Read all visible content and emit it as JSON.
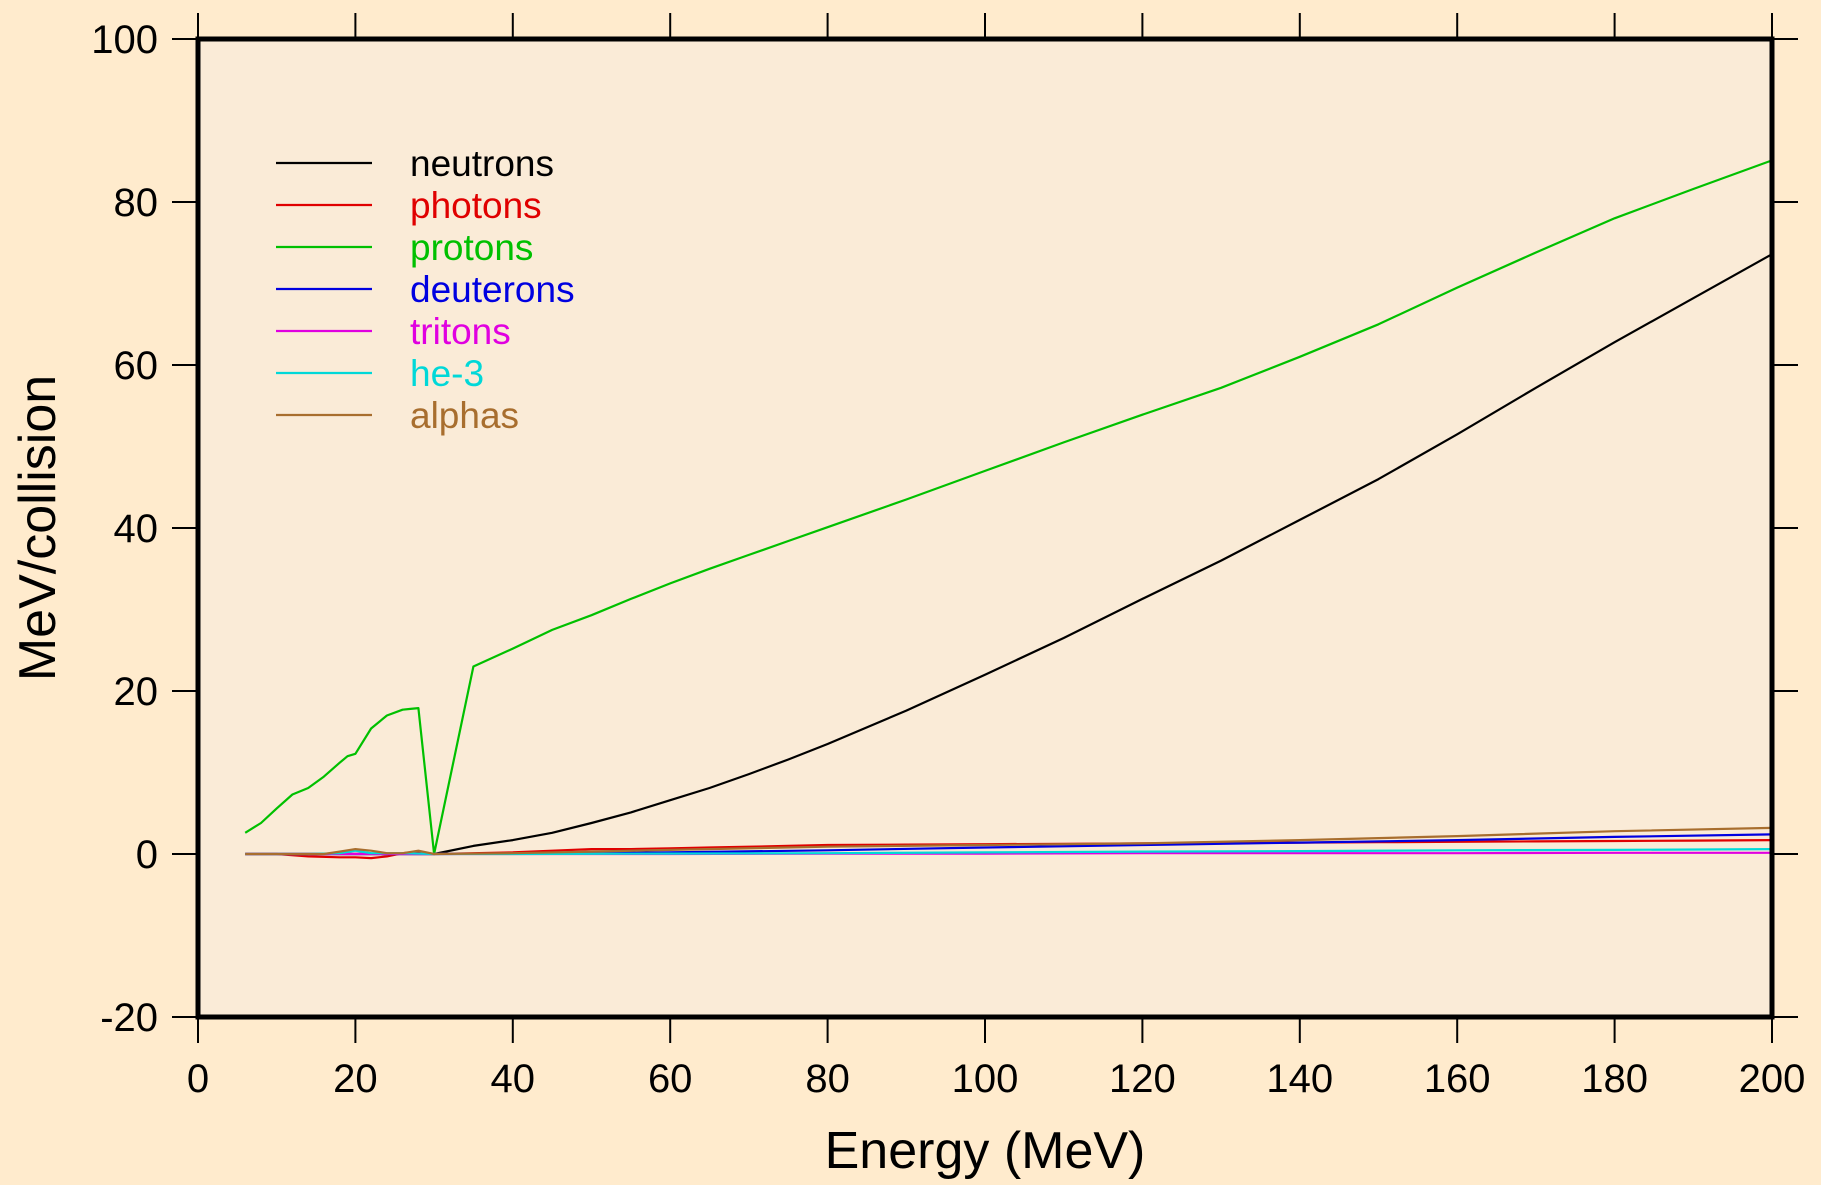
{
  "chart_data": {
    "type": "line",
    "title": "",
    "xlabel": "Energy (MeV)",
    "ylabel": "MeV/collision",
    "xlim": [
      0,
      200
    ],
    "ylim": [
      -20,
      100
    ],
    "xticks": [
      0,
      20,
      40,
      60,
      80,
      100,
      120,
      140,
      160,
      180,
      200
    ],
    "yticks": [
      -20,
      0,
      20,
      40,
      60,
      80,
      100
    ],
    "grid": false,
    "legend": "top-left",
    "colors": {
      "page_background": "#FFEBCD",
      "plot_background": "#FAEBD7"
    },
    "series": [
      {
        "name": "neutrons",
        "color": "#000000",
        "x": [
          6,
          10,
          14,
          18,
          20,
          22,
          24,
          26,
          28,
          30,
          35,
          40,
          45,
          50,
          55,
          60,
          65,
          70,
          75,
          80,
          90,
          100,
          110,
          120,
          130,
          140,
          150,
          160,
          170,
          180,
          190,
          200
        ],
        "y": [
          0,
          0,
          0,
          0,
          0,
          0,
          0,
          0,
          0,
          0,
          1,
          1.7,
          2.6,
          3.8,
          5.1,
          6.6,
          8.1,
          9.8,
          11.6,
          13.5,
          17.6,
          22,
          26.5,
          31.3,
          36,
          41,
          46,
          51.5,
          57.2,
          62.8,
          68.2,
          73.6
        ]
      },
      {
        "name": "photons",
        "color": "#E00000",
        "x": [
          6,
          10,
          14,
          18,
          20,
          22,
          24,
          26,
          28,
          30,
          35,
          40,
          45,
          50,
          55,
          60,
          65,
          70,
          75,
          80,
          90,
          100,
          110,
          120,
          130,
          140,
          150,
          160,
          170,
          180,
          190,
          200
        ],
        "y": [
          0,
          0,
          -0.3,
          -0.4,
          -0.4,
          -0.5,
          -0.3,
          0.1,
          0.3,
          0,
          0.1,
          0.2,
          0.4,
          0.6,
          0.6,
          0.7,
          0.8,
          0.9,
          1,
          1.1,
          1.15,
          1.2,
          1.25,
          1.3,
          1.35,
          1.4,
          1.45,
          1.5,
          1.55,
          1.6,
          1.65,
          1.7
        ]
      },
      {
        "name": "protons",
        "color": "#00C000",
        "x": [
          6,
          8,
          10,
          12,
          14,
          16,
          18,
          19,
          20,
          22,
          24,
          26,
          27,
          28,
          30,
          35,
          40,
          45,
          50,
          55,
          60,
          65,
          70,
          75,
          80,
          90,
          100,
          110,
          120,
          130,
          140,
          150,
          160,
          170,
          180,
          190,
          200
        ],
        "y": [
          2.6,
          3.8,
          5.6,
          7.3,
          8.1,
          9.5,
          11.2,
          12,
          12.3,
          15.4,
          17,
          17.7,
          17.8,
          17.9,
          0,
          23,
          25.2,
          27.5,
          29.3,
          31.3,
          33.2,
          35,
          36.7,
          38.4,
          40.1,
          43.5,
          47,
          50.5,
          53.9,
          57.2,
          61,
          65,
          69.5,
          73.8,
          78,
          81.6,
          85.1
        ]
      },
      {
        "name": "deuterons",
        "color": "#0000E0",
        "x": [
          6,
          10,
          20,
          30,
          40,
          60,
          80,
          100,
          120,
          140,
          160,
          180,
          200
        ],
        "y": [
          0,
          0,
          0,
          0,
          0.05,
          0.2,
          0.45,
          0.8,
          1.1,
          1.4,
          1.7,
          2.1,
          2.4
        ]
      },
      {
        "name": "tritons",
        "color": "#E000E0",
        "x": [
          6,
          10,
          20,
          30,
          40,
          60,
          80,
          100,
          120,
          140,
          160,
          180,
          200
        ],
        "y": [
          0,
          0,
          0,
          0,
          0,
          0,
          0.05,
          0.05,
          0.1,
          0.1,
          0.1,
          0.15,
          0.15
        ]
      },
      {
        "name": "he-3",
        "color": "#00D8D8",
        "x": [
          6,
          10,
          14,
          18,
          20,
          22,
          26,
          30,
          40,
          60,
          80,
          100,
          120,
          140,
          160,
          180,
          200
        ],
        "y": [
          0,
          0,
          0,
          0.1,
          0.4,
          0.1,
          0.1,
          0,
          0,
          0.05,
          0.1,
          0.2,
          0.3,
          0.35,
          0.45,
          0.5,
          0.6
        ]
      },
      {
        "name": "alphas",
        "color": "#A86E2E",
        "x": [
          6,
          10,
          14,
          16,
          18,
          20,
          22,
          24,
          26,
          28,
          30,
          40,
          50,
          60,
          80,
          100,
          120,
          140,
          160,
          180,
          200
        ],
        "y": [
          0,
          0,
          0,
          0,
          0.3,
          0.6,
          0.4,
          0.1,
          0.1,
          0.4,
          0,
          0.1,
          0.3,
          0.5,
          0.9,
          1.1,
          1.3,
          1.7,
          2.2,
          2.8,
          3.2
        ]
      }
    ]
  }
}
